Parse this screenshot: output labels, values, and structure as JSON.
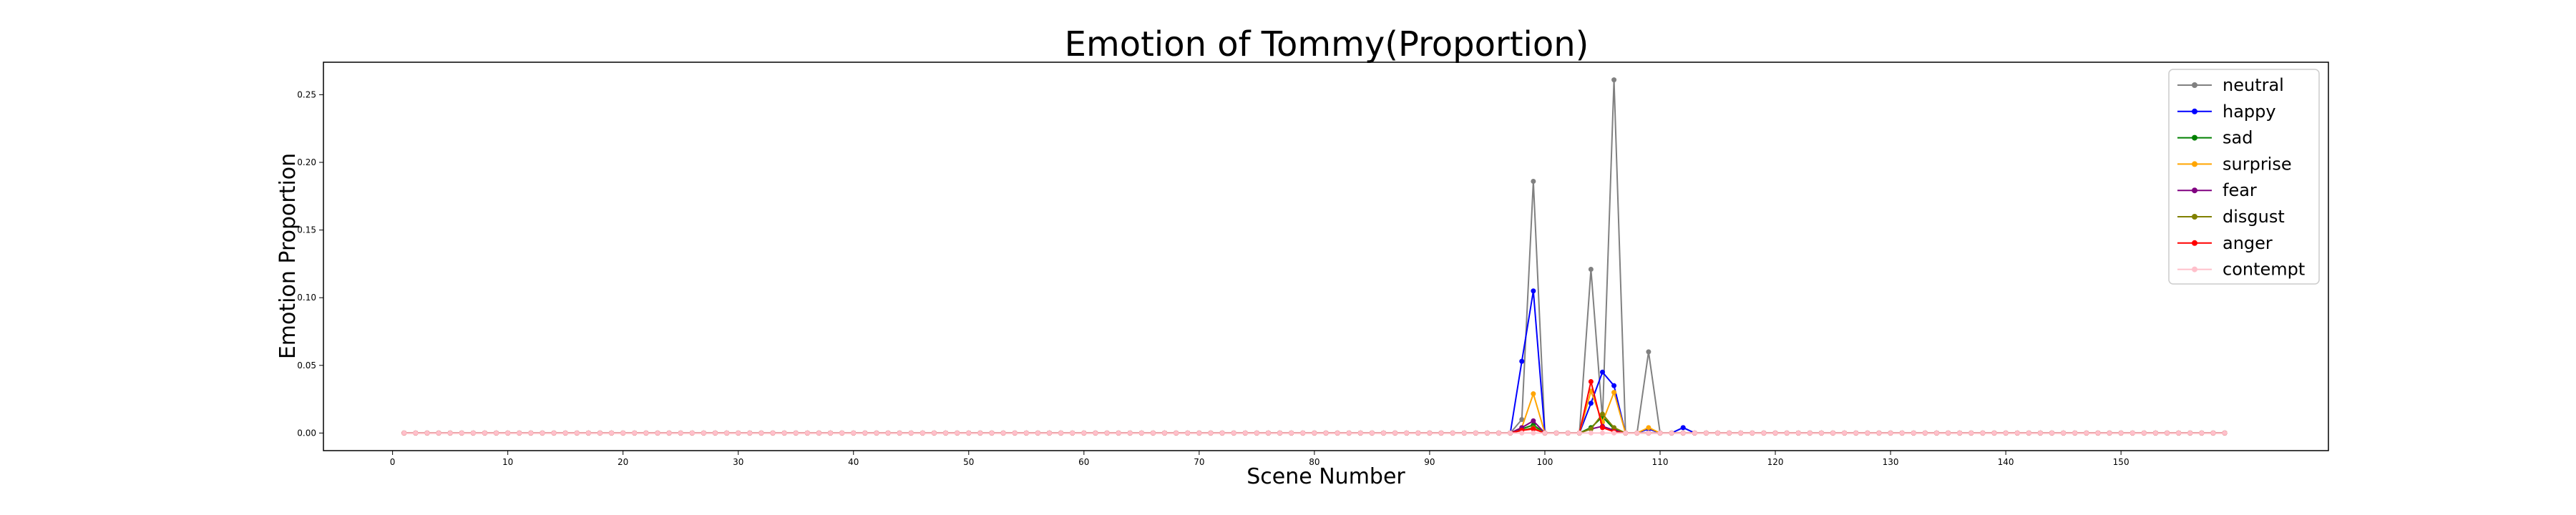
{
  "chart_data": {
    "type": "line",
    "title": "Emotion of Tommy(Proportion)",
    "xlabel": "Scene Number",
    "ylabel": "Emotion Proportion",
    "xlim": [
      -6,
      168
    ],
    "ylim": [
      -0.013,
      0.274
    ],
    "xticks": [
      0,
      10,
      20,
      30,
      40,
      50,
      60,
      70,
      80,
      90,
      100,
      110,
      120,
      130,
      140,
      150
    ],
    "yticks": [
      "0.00",
      "0.05",
      "0.10",
      "0.15",
      "0.20",
      "0.25"
    ],
    "grid": false,
    "legend_position": "top-right",
    "x_start": 1,
    "x_end": 159,
    "series": [
      {
        "name": "neutral",
        "color": "#808080",
        "values": {
          "97": 0,
          "98": 0.01,
          "99": 0.186,
          "100": 0,
          "103": 0,
          "104": 0.121,
          "105": 0.01,
          "106": 0.261,
          "107": 0,
          "108": 0,
          "109": 0.06,
          "110": 0,
          "112": 0.004
        }
      },
      {
        "name": "happy",
        "color": "#0000ff",
        "values": {
          "97": 0,
          "98": 0.053,
          "99": 0.105,
          "100": 0,
          "103": 0,
          "104": 0.022,
          "105": 0.045,
          "106": 0.035,
          "107": 0,
          "108": 0,
          "109": 0.003,
          "110": 0,
          "112": 0.004
        }
      },
      {
        "name": "sad",
        "color": "#008000",
        "values": {
          "98": 0.003,
          "99": 0.006,
          "100": 0,
          "104": 0.004,
          "105": 0.012,
          "106": 0.003,
          "107": 0
        }
      },
      {
        "name": "surprise",
        "color": "#ffa500",
        "values": {
          "98": 0.004,
          "99": 0.029,
          "100": 0,
          "104": 0.031,
          "105": 0.008,
          "106": 0.03,
          "107": 0,
          "109": 0.004,
          "110": 0
        }
      },
      {
        "name": "fear",
        "color": "#800080",
        "values": {
          "98": 0.004,
          "99": 0.009,
          "100": 0,
          "104": 0.003,
          "105": 0.005,
          "106": 0.002,
          "107": 0
        }
      },
      {
        "name": "disgust",
        "color": "#808000",
        "values": {
          "98": 0.002,
          "99": 0.004,
          "100": 0,
          "104": 0.003,
          "105": 0.014,
          "106": 0.004,
          "107": 0
        }
      },
      {
        "name": "anger",
        "color": "#ff0000",
        "values": {
          "98": 0.002,
          "99": 0.003,
          "100": 0,
          "104": 0.038,
          "105": 0.004,
          "106": 0.001,
          "107": 0
        }
      },
      {
        "name": "contempt",
        "color": "#ffc0cb",
        "values": {}
      }
    ]
  }
}
